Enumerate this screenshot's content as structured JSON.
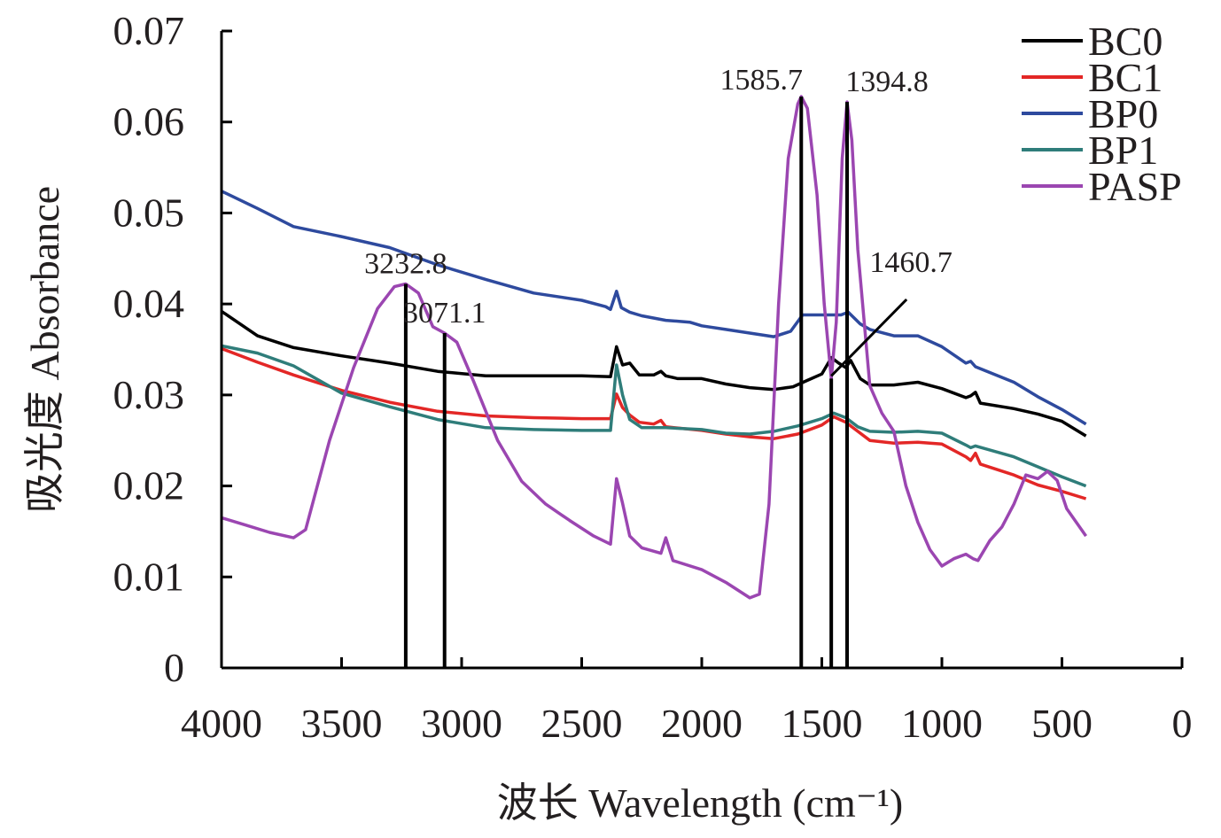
{
  "chart_data": {
    "type": "line",
    "xlabel": "波长 Wavelength (cm⁻¹)",
    "ylabel": "吸光度 Absorbance",
    "xlim": [
      4000,
      0
    ],
    "ylim": [
      0,
      0.07
    ],
    "x_ticks": [
      "4000",
      "3500",
      "3000",
      "2500",
      "2000",
      "1500",
      "1000",
      "500",
      "0"
    ],
    "x_tick_values": [
      4000,
      3500,
      3000,
      2500,
      2000,
      1500,
      1000,
      500,
      0
    ],
    "y_ticks": [
      "0",
      "0.01",
      "0.02",
      "0.03",
      "0.04",
      "0.05",
      "0.06",
      "0.07"
    ],
    "y_tick_values": [
      0,
      0.01,
      0.02,
      0.03,
      0.04,
      0.05,
      0.06,
      0.07
    ],
    "grid": false,
    "legend_position": "top-right",
    "series": [
      {
        "name": "BC0",
        "color": "#000000",
        "points": [
          [
            4000,
            0.0392
          ],
          [
            3850,
            0.0365
          ],
          [
            3700,
            0.0352
          ],
          [
            3500,
            0.0343
          ],
          [
            3300,
            0.0335
          ],
          [
            3100,
            0.0326
          ],
          [
            2900,
            0.0321
          ],
          [
            2700,
            0.0321
          ],
          [
            2500,
            0.0321
          ],
          [
            2380,
            0.032
          ],
          [
            2355,
            0.0353
          ],
          [
            2330,
            0.0333
          ],
          [
            2300,
            0.0335
          ],
          [
            2260,
            0.0322
          ],
          [
            2200,
            0.0322
          ],
          [
            2170,
            0.0326
          ],
          [
            2150,
            0.0321
          ],
          [
            2100,
            0.0318
          ],
          [
            2000,
            0.0318
          ],
          [
            1900,
            0.0312
          ],
          [
            1800,
            0.0308
          ],
          [
            1700,
            0.0306
          ],
          [
            1620,
            0.0309
          ],
          [
            1560,
            0.0316
          ],
          [
            1500,
            0.0323
          ],
          [
            1460,
            0.0341
          ],
          [
            1430,
            0.0335
          ],
          [
            1400,
            0.033
          ],
          [
            1380,
            0.0338
          ],
          [
            1340,
            0.0318
          ],
          [
            1300,
            0.0311
          ],
          [
            1200,
            0.0311
          ],
          [
            1100,
            0.0314
          ],
          [
            1000,
            0.0307
          ],
          [
            900,
            0.0297
          ],
          [
            880,
            0.0299
          ],
          [
            860,
            0.0303
          ],
          [
            840,
            0.0291
          ],
          [
            700,
            0.0285
          ],
          [
            600,
            0.0279
          ],
          [
            500,
            0.0271
          ],
          [
            400,
            0.0255
          ]
        ]
      },
      {
        "name": "BC1",
        "color": "#e32726",
        "points": [
          [
            4000,
            0.0351
          ],
          [
            3850,
            0.0336
          ],
          [
            3700,
            0.0322
          ],
          [
            3500,
            0.0305
          ],
          [
            3300,
            0.0292
          ],
          [
            3100,
            0.0282
          ],
          [
            2900,
            0.0277
          ],
          [
            2700,
            0.0275
          ],
          [
            2500,
            0.0274
          ],
          [
            2380,
            0.0274
          ],
          [
            2355,
            0.0301
          ],
          [
            2330,
            0.0286
          ],
          [
            2300,
            0.0278
          ],
          [
            2260,
            0.027
          ],
          [
            2200,
            0.0268
          ],
          [
            2170,
            0.0272
          ],
          [
            2150,
            0.0265
          ],
          [
            2000,
            0.0261
          ],
          [
            1900,
            0.0257
          ],
          [
            1800,
            0.0254
          ],
          [
            1700,
            0.0252
          ],
          [
            1600,
            0.0257
          ],
          [
            1500,
            0.0267
          ],
          [
            1450,
            0.0276
          ],
          [
            1400,
            0.027
          ],
          [
            1360,
            0.0262
          ],
          [
            1300,
            0.025
          ],
          [
            1200,
            0.0247
          ],
          [
            1100,
            0.0248
          ],
          [
            1000,
            0.0246
          ],
          [
            900,
            0.0232
          ],
          [
            880,
            0.0228
          ],
          [
            860,
            0.0236
          ],
          [
            840,
            0.0224
          ],
          [
            700,
            0.0212
          ],
          [
            600,
            0.0201
          ],
          [
            500,
            0.0194
          ],
          [
            400,
            0.0186
          ]
        ]
      },
      {
        "name": "BP0",
        "color": "#2e4a9e",
        "points": [
          [
            4000,
            0.0524
          ],
          [
            3850,
            0.0505
          ],
          [
            3700,
            0.0485
          ],
          [
            3500,
            0.0474
          ],
          [
            3300,
            0.0462
          ],
          [
            3100,
            0.0443
          ],
          [
            2900,
            0.0427
          ],
          [
            2700,
            0.0412
          ],
          [
            2500,
            0.0404
          ],
          [
            2400,
            0.0397
          ],
          [
            2380,
            0.0394
          ],
          [
            2355,
            0.0414
          ],
          [
            2335,
            0.0396
          ],
          [
            2300,
            0.0391
          ],
          [
            2250,
            0.0387
          ],
          [
            2150,
            0.0382
          ],
          [
            2050,
            0.038
          ],
          [
            2000,
            0.0376
          ],
          [
            1900,
            0.0372
          ],
          [
            1800,
            0.0368
          ],
          [
            1700,
            0.0364
          ],
          [
            1630,
            0.037
          ],
          [
            1580,
            0.0388
          ],
          [
            1500,
            0.0388
          ],
          [
            1420,
            0.0388
          ],
          [
            1390,
            0.0391
          ],
          [
            1340,
            0.0378
          ],
          [
            1300,
            0.0372
          ],
          [
            1200,
            0.0365
          ],
          [
            1100,
            0.0365
          ],
          [
            1000,
            0.0353
          ],
          [
            900,
            0.0335
          ],
          [
            880,
            0.0337
          ],
          [
            860,
            0.0331
          ],
          [
            700,
            0.0314
          ],
          [
            600,
            0.0298
          ],
          [
            500,
            0.0284
          ],
          [
            400,
            0.0268
          ]
        ]
      },
      {
        "name": "BP1",
        "color": "#2f7d7a",
        "points": [
          [
            4000,
            0.0354
          ],
          [
            3850,
            0.0346
          ],
          [
            3700,
            0.0332
          ],
          [
            3500,
            0.0302
          ],
          [
            3300,
            0.0287
          ],
          [
            3100,
            0.0273
          ],
          [
            2900,
            0.0264
          ],
          [
            2700,
            0.0262
          ],
          [
            2500,
            0.0261
          ],
          [
            2380,
            0.0261
          ],
          [
            2355,
            0.0333
          ],
          [
            2330,
            0.03
          ],
          [
            2300,
            0.0273
          ],
          [
            2250,
            0.0264
          ],
          [
            2150,
            0.0264
          ],
          [
            2000,
            0.0262
          ],
          [
            1900,
            0.0258
          ],
          [
            1800,
            0.0257
          ],
          [
            1700,
            0.026
          ],
          [
            1600,
            0.0266
          ],
          [
            1500,
            0.0274
          ],
          [
            1450,
            0.028
          ],
          [
            1400,
            0.0275
          ],
          [
            1350,
            0.0265
          ],
          [
            1300,
            0.026
          ],
          [
            1200,
            0.0259
          ],
          [
            1100,
            0.026
          ],
          [
            1000,
            0.0258
          ],
          [
            900,
            0.0245
          ],
          [
            880,
            0.0242
          ],
          [
            860,
            0.0244
          ],
          [
            700,
            0.0232
          ],
          [
            600,
            0.0221
          ],
          [
            500,
            0.021
          ],
          [
            400,
            0.02
          ]
        ]
      },
      {
        "name": "PASP",
        "color": "#9b46b1",
        "points": [
          [
            4000,
            0.0165
          ],
          [
            3900,
            0.0157
          ],
          [
            3800,
            0.0149
          ],
          [
            3700,
            0.0143
          ],
          [
            3650,
            0.0152
          ],
          [
            3550,
            0.025
          ],
          [
            3450,
            0.033
          ],
          [
            3350,
            0.0395
          ],
          [
            3280,
            0.0419
          ],
          [
            3232.8,
            0.0422
          ],
          [
            3180,
            0.0412
          ],
          [
            3120,
            0.0375
          ],
          [
            3071.1,
            0.0368
          ],
          [
            3020,
            0.0358
          ],
          [
            2950,
            0.0315
          ],
          [
            2850,
            0.025
          ],
          [
            2750,
            0.0205
          ],
          [
            2650,
            0.018
          ],
          [
            2550,
            0.0162
          ],
          [
            2450,
            0.0145
          ],
          [
            2380,
            0.0136
          ],
          [
            2355,
            0.0208
          ],
          [
            2330,
            0.0181
          ],
          [
            2300,
            0.0145
          ],
          [
            2250,
            0.0132
          ],
          [
            2170,
            0.0126
          ],
          [
            2150,
            0.0143
          ],
          [
            2120,
            0.0118
          ],
          [
            2000,
            0.0108
          ],
          [
            1900,
            0.0094
          ],
          [
            1800,
            0.0077
          ],
          [
            1760,
            0.0081
          ],
          [
            1720,
            0.018
          ],
          [
            1680,
            0.04
          ],
          [
            1640,
            0.056
          ],
          [
            1600,
            0.062
          ],
          [
            1585.7,
            0.0628
          ],
          [
            1560,
            0.0615
          ],
          [
            1520,
            0.052
          ],
          [
            1490,
            0.04
          ],
          [
            1460.7,
            0.0318
          ],
          [
            1440,
            0.038
          ],
          [
            1415,
            0.056
          ],
          [
            1394.8,
            0.0622
          ],
          [
            1375,
            0.058
          ],
          [
            1350,
            0.046
          ],
          [
            1300,
            0.031
          ],
          [
            1250,
            0.028
          ],
          [
            1200,
            0.026
          ],
          [
            1150,
            0.02
          ],
          [
            1100,
            0.016
          ],
          [
            1050,
            0.013
          ],
          [
            1000,
            0.0112
          ],
          [
            950,
            0.012
          ],
          [
            900,
            0.0125
          ],
          [
            870,
            0.012
          ],
          [
            850,
            0.0118
          ],
          [
            800,
            0.014
          ],
          [
            750,
            0.0155
          ],
          [
            700,
            0.018
          ],
          [
            650,
            0.0212
          ],
          [
            600,
            0.0208
          ],
          [
            560,
            0.0216
          ],
          [
            520,
            0.0206
          ],
          [
            480,
            0.0175
          ],
          [
            440,
            0.016
          ],
          [
            400,
            0.0145
          ]
        ]
      }
    ],
    "peak_markers": [
      {
        "x": 3232.8,
        "label": "3232.8",
        "y_top": 0.0422
      },
      {
        "x": 3071.1,
        "label": "3071.1",
        "y_top": 0.0368
      },
      {
        "x": 1585.7,
        "label": "1585.7",
        "y_top": 0.0628
      },
      {
        "x": 1460.7,
        "label": "1460.7",
        "y_top": 0.0318
      },
      {
        "x": 1394.8,
        "label": "1394.8",
        "y_top": 0.0622
      }
    ]
  }
}
